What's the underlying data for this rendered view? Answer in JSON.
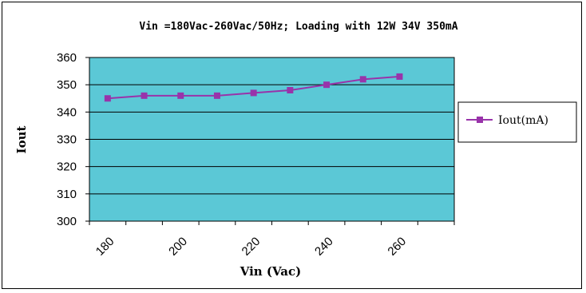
{
  "chart_data": {
    "type": "line",
    "title": "Vin =180Vac-260Vac/50Hz; Loading with 12W 34V 350mA",
    "xlabel": "Vin (Vac)",
    "ylabel": "Iout",
    "x_categories": [
      180,
      190,
      200,
      210,
      220,
      230,
      240,
      250,
      260
    ],
    "x_tick_labels": [
      "180",
      "200",
      "220",
      "240",
      "260"
    ],
    "y_ticks": [
      "300",
      "310",
      "320",
      "330",
      "340",
      "350",
      "360"
    ],
    "ylim": [
      300,
      360
    ],
    "grid": "horizontal",
    "legend_position": "right",
    "series": [
      {
        "name": "Iout(mA)",
        "color": "#9933aa",
        "marker": "square",
        "values": [
          345,
          346,
          346,
          346,
          347,
          348,
          350,
          352,
          353
        ]
      }
    ],
    "plot_background": "#5bc8d6"
  }
}
